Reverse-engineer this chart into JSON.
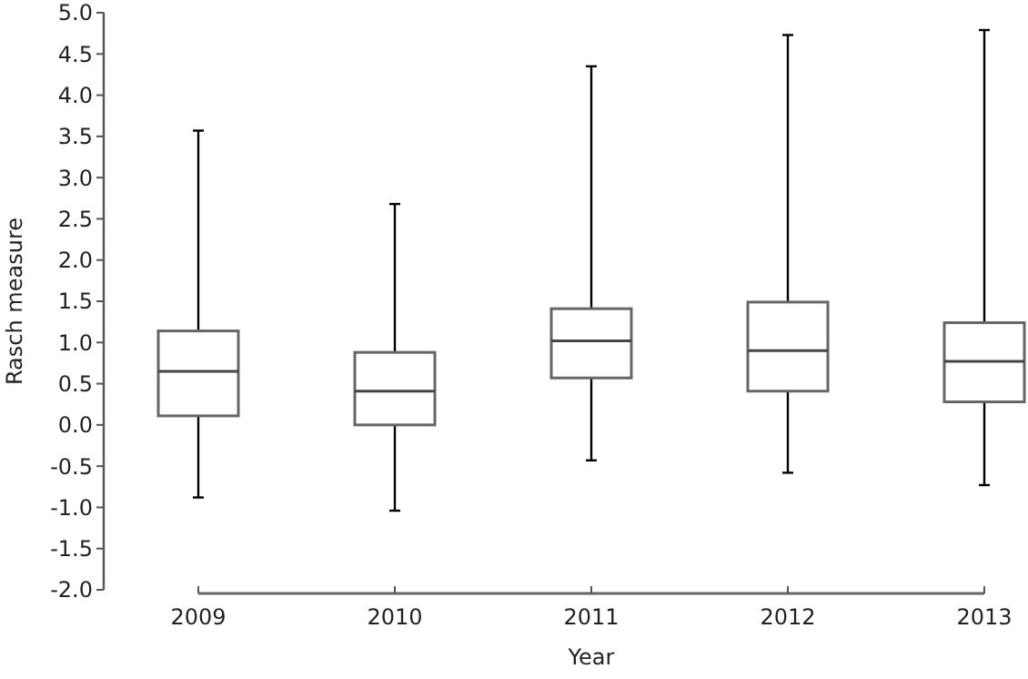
{
  "chart_data": {
    "type": "box",
    "xlabel": "Year",
    "ylabel": "Rasch measure",
    "categories": [
      "2009",
      "2010",
      "2011",
      "2012",
      "2013"
    ],
    "boxes": [
      {
        "low": -0.88,
        "q1": 0.11,
        "median": 0.65,
        "q3": 1.14,
        "high": 3.57
      },
      {
        "low": -1.04,
        "q1": 0.0,
        "median": 0.41,
        "q3": 0.88,
        "high": 2.68
      },
      {
        "low": -0.43,
        "q1": 0.57,
        "median": 1.02,
        "q3": 1.41,
        "high": 4.35
      },
      {
        "low": -0.58,
        "q1": 0.41,
        "median": 0.9,
        "q3": 1.49,
        "high": 4.73
      },
      {
        "low": -0.73,
        "q1": 0.28,
        "median": 0.77,
        "q3": 1.24,
        "high": 4.79
      }
    ],
    "ylim": [
      -2,
      5
    ],
    "yticks": [
      {
        "value": -2,
        "label": "-2.0"
      },
      {
        "value": -1.5,
        "label": "-1.5"
      },
      {
        "value": -1,
        "label": "-1.0"
      },
      {
        "value": -0.5,
        "label": "-0.5"
      },
      {
        "value": 0,
        "label": "0.0"
      },
      {
        "value": 0.5,
        "label": "0.5"
      },
      {
        "value": 1,
        "label": "1.0"
      },
      {
        "value": 1.5,
        "label": "1.5"
      },
      {
        "value": 2,
        "label": "2.0"
      },
      {
        "value": 2.5,
        "label": "2.5"
      },
      {
        "value": 3,
        "label": "3.0"
      },
      {
        "value": 3.5,
        "label": "3.5"
      },
      {
        "value": 4,
        "label": "4.0"
      },
      {
        "value": 4.5,
        "label": "4.5"
      },
      {
        "value": 5,
        "label": "5.0"
      }
    ],
    "grid": false
  }
}
